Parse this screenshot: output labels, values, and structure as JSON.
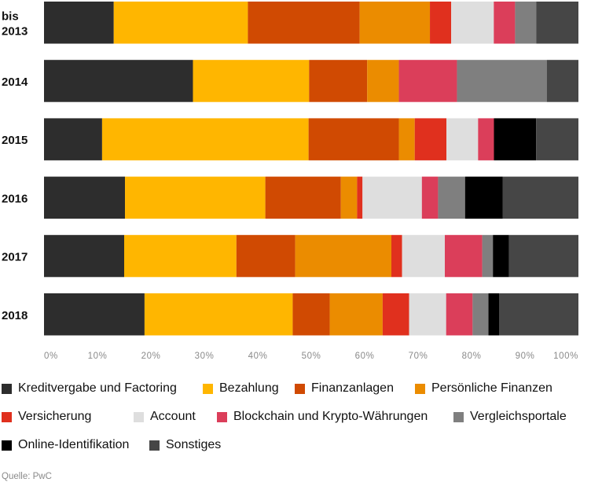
{
  "chart_data": {
    "type": "bar",
    "orientation": "horizontal",
    "stacked": true,
    "normalized": true,
    "categories": [
      "bis 2013",
      "2014",
      "2015",
      "2016",
      "2017",
      "2018"
    ],
    "series": [
      {
        "name": "Kreditvergabe und Factoring",
        "color": "#2d2d2d",
        "values": [
          13.1,
          28.2,
          11.0,
          15.0,
          15.0,
          19.0
        ]
      },
      {
        "name": "Bezahlung",
        "color": "#ffb600",
        "values": [
          25.2,
          22.0,
          39.1,
          26.0,
          21.0,
          28.0
        ]
      },
      {
        "name": "Finanzanlagen",
        "color": "#d04a02",
        "values": [
          21.0,
          11.0,
          17.1,
          14.0,
          11.0,
          7.0
        ]
      },
      {
        "name": "Persönliche Finanzen",
        "color": "#eb8c00",
        "values": [
          13.2,
          6.0,
          3.0,
          3.0,
          18.0,
          10.0
        ]
      },
      {
        "name": "Versicherung",
        "color": "#e0301e",
        "values": [
          4.0,
          0.0,
          6.0,
          1.0,
          2.0,
          5.0
        ]
      },
      {
        "name": "Account",
        "color": "#dedede",
        "values": [
          8.0,
          0.0,
          6.0,
          11.0,
          8.0,
          7.0
        ]
      },
      {
        "name": "Blockchain und Krypto-Währungen",
        "color": "#db3e5a",
        "values": [
          4.0,
          11.0,
          3.0,
          3.0,
          7.0,
          5.0
        ]
      },
      {
        "name": "Vergleichsportale",
        "color": "#7f7f7f",
        "values": [
          4.0,
          17.0,
          0.0,
          5.0,
          2.0,
          3.0
        ]
      },
      {
        "name": "Online-Identifikation",
        "color": "#000000",
        "values": [
          0.0,
          0.0,
          8.0,
          7.0,
          3.0,
          2.0
        ]
      },
      {
        "name": "Sonstiges",
        "color": "#464646",
        "values": [
          7.9,
          6.0,
          8.0,
          14.0,
          13.0,
          15.0
        ]
      }
    ],
    "xlim": [
      0,
      100
    ],
    "xticks": [
      "0%",
      "10%",
      "20%",
      "30%",
      "40%",
      "50%",
      "60%",
      "70%",
      "80%",
      "90%",
      "100%"
    ],
    "grid": false,
    "legend_position": "bottom"
  },
  "source": "Quelle: PwC"
}
